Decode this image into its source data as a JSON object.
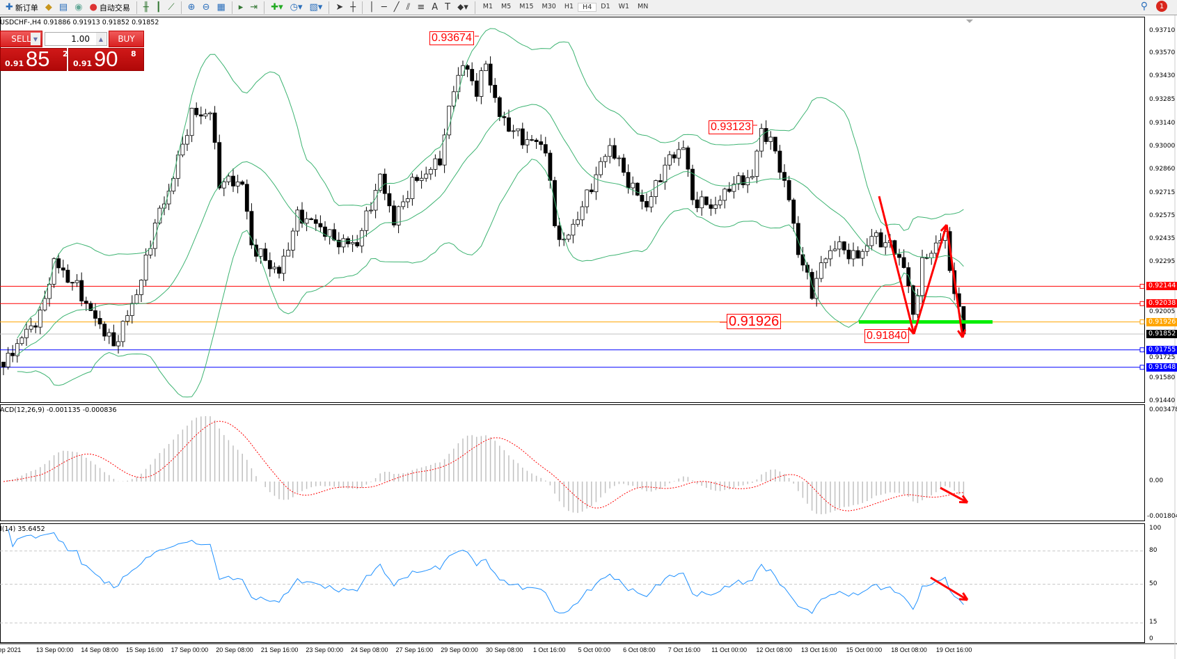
{
  "toolbar": {
    "new_order": "新订单",
    "auto_trading": "自动交易",
    "timeframes": [
      "M1",
      "M5",
      "M15",
      "M30",
      "H1",
      "H4",
      "D1",
      "W1",
      "MN"
    ],
    "active_timeframe": "H4",
    "notification_count": "1"
  },
  "chart_info": "USDCHF-,H4  0.91886 0.91913 0.91852 0.91852",
  "trade_panel": {
    "sell": "SELL",
    "buy": "BUY",
    "lot": "1.00",
    "bid": {
      "small": "0.91",
      "big": "85",
      "pip": "2"
    },
    "ask": {
      "small": "0.91",
      "big": "90",
      "pip": "8"
    }
  },
  "labels": {
    "high1": "0.93674",
    "high2": "0.93123",
    "level": "0.91926",
    "low": "0.91840"
  },
  "price_axis": [
    "0.93710",
    "0.93570",
    "0.93430",
    "0.93285",
    "0.93140",
    "0.93000",
    "0.92860",
    "0.92715",
    "0.92575",
    "0.92435",
    "0.92295",
    "0.92005",
    "0.91725",
    "0.91580",
    "0.91440"
  ],
  "levels": [
    {
      "price": "0.92144",
      "color": "#ff0000"
    },
    {
      "price": "0.92038",
      "color": "#ff0000"
    },
    {
      "price": "0.91926",
      "color": "#ffa500"
    },
    {
      "price": "0.91852",
      "color": "#000000",
      "line": "#c0c0c0"
    },
    {
      "price": "0.91755",
      "color": "#0000ff"
    },
    {
      "price": "0.91648",
      "color": "#0000ff"
    }
  ],
  "macd": {
    "label": "ACD(12,26,9) -0.001135 -0.000836",
    "axis": [
      "0.003478",
      "0.00",
      "-0.001804"
    ]
  },
  "rsi": {
    "label": "I(14) 35.6452",
    "axis": [
      "100",
      "80",
      "50",
      "15",
      "0"
    ]
  },
  "time_axis": [
    "ep 2021",
    "13 Sep 00:00",
    "14 Sep 08:00",
    "15 Sep 16:00",
    "17 Sep 00:00",
    "20 Sep 08:00",
    "21 Sep 16:00",
    "23 Sep 00:00",
    "24 Sep 08:00",
    "27 Sep 16:00",
    "29 Sep 00:00",
    "30 Sep 08:00",
    "1 Oct 16:00",
    "5 Oct 00:00",
    "6 Oct 08:00",
    "7 Oct 16:00",
    "11 Oct 00:00",
    "12 Oct 08:00",
    "13 Oct 16:00",
    "15 Oct 00:00",
    "18 Oct 08:00",
    "19 Oct 16:00"
  ],
  "chart_data": {
    "type": "candlestick",
    "symbol": "USDCHF-",
    "timeframe": "H4",
    "ylim": [
      0.9144,
      0.9375
    ],
    "approx_close_path": [
      [
        0,
        0.9165
      ],
      [
        2,
        0.9173
      ],
      [
        8,
        0.9196
      ],
      [
        11,
        0.9232
      ],
      [
        16,
        0.9214
      ],
      [
        19,
        0.9196
      ],
      [
        24,
        0.9178
      ],
      [
        30,
        0.922
      ],
      [
        33,
        0.9252
      ],
      [
        36,
        0.927
      ],
      [
        41,
        0.9321
      ],
      [
        45,
        0.9323
      ],
      [
        47,
        0.9279
      ],
      [
        52,
        0.9275
      ],
      [
        54,
        0.9238
      ],
      [
        60,
        0.9225
      ],
      [
        64,
        0.9257
      ],
      [
        67,
        0.9252
      ],
      [
        72,
        0.9243
      ],
      [
        77,
        0.9243
      ],
      [
        82,
        0.9279
      ],
      [
        85,
        0.9252
      ],
      [
        89,
        0.9279
      ],
      [
        95,
        0.9293
      ],
      [
        98,
        0.9334
      ],
      [
        100,
        0.9348
      ],
      [
        103,
        0.9334
      ],
      [
        105,
        0.9352
      ],
      [
        108,
        0.9321
      ],
      [
        113,
        0.9303
      ],
      [
        118,
        0.9298
      ],
      [
        120,
        0.9252
      ],
      [
        122,
        0.9243
      ],
      [
        127,
        0.927
      ],
      [
        132,
        0.9298
      ],
      [
        136,
        0.9279
      ],
      [
        140,
        0.9266
      ],
      [
        144,
        0.9288
      ],
      [
        148,
        0.9298
      ],
      [
        150,
        0.9266
      ],
      [
        155,
        0.9266
      ],
      [
        158,
        0.9277
      ],
      [
        163,
        0.9279
      ],
      [
        165,
        0.9309
      ],
      [
        168,
        0.9298
      ],
      [
        171,
        0.927
      ],
      [
        173,
        0.9238
      ],
      [
        176,
        0.921
      ],
      [
        178,
        0.9225
      ],
      [
        181,
        0.9238
      ],
      [
        186,
        0.9234
      ],
      [
        189,
        0.9247
      ],
      [
        193,
        0.9238
      ],
      [
        196,
        0.9225
      ],
      [
        198,
        0.9196
      ],
      [
        200,
        0.9229
      ],
      [
        203,
        0.9243
      ],
      [
        205,
        0.9247
      ],
      [
        207,
        0.921
      ],
      [
        209,
        0.91852
      ]
    ],
    "indicators": [
      "Bollinger Bands",
      "MACD(12,26,9)",
      "RSI(14)"
    ],
    "rsi_levels": [
      80,
      50,
      15
    ],
    "colors": {
      "bands": "#3cb371",
      "macd_hist": "#c0c0c0",
      "macd_signal": "#ff0000",
      "rsi": "#1e90ff",
      "arrows": "#ff0000",
      "support": "#00ee00"
    }
  }
}
